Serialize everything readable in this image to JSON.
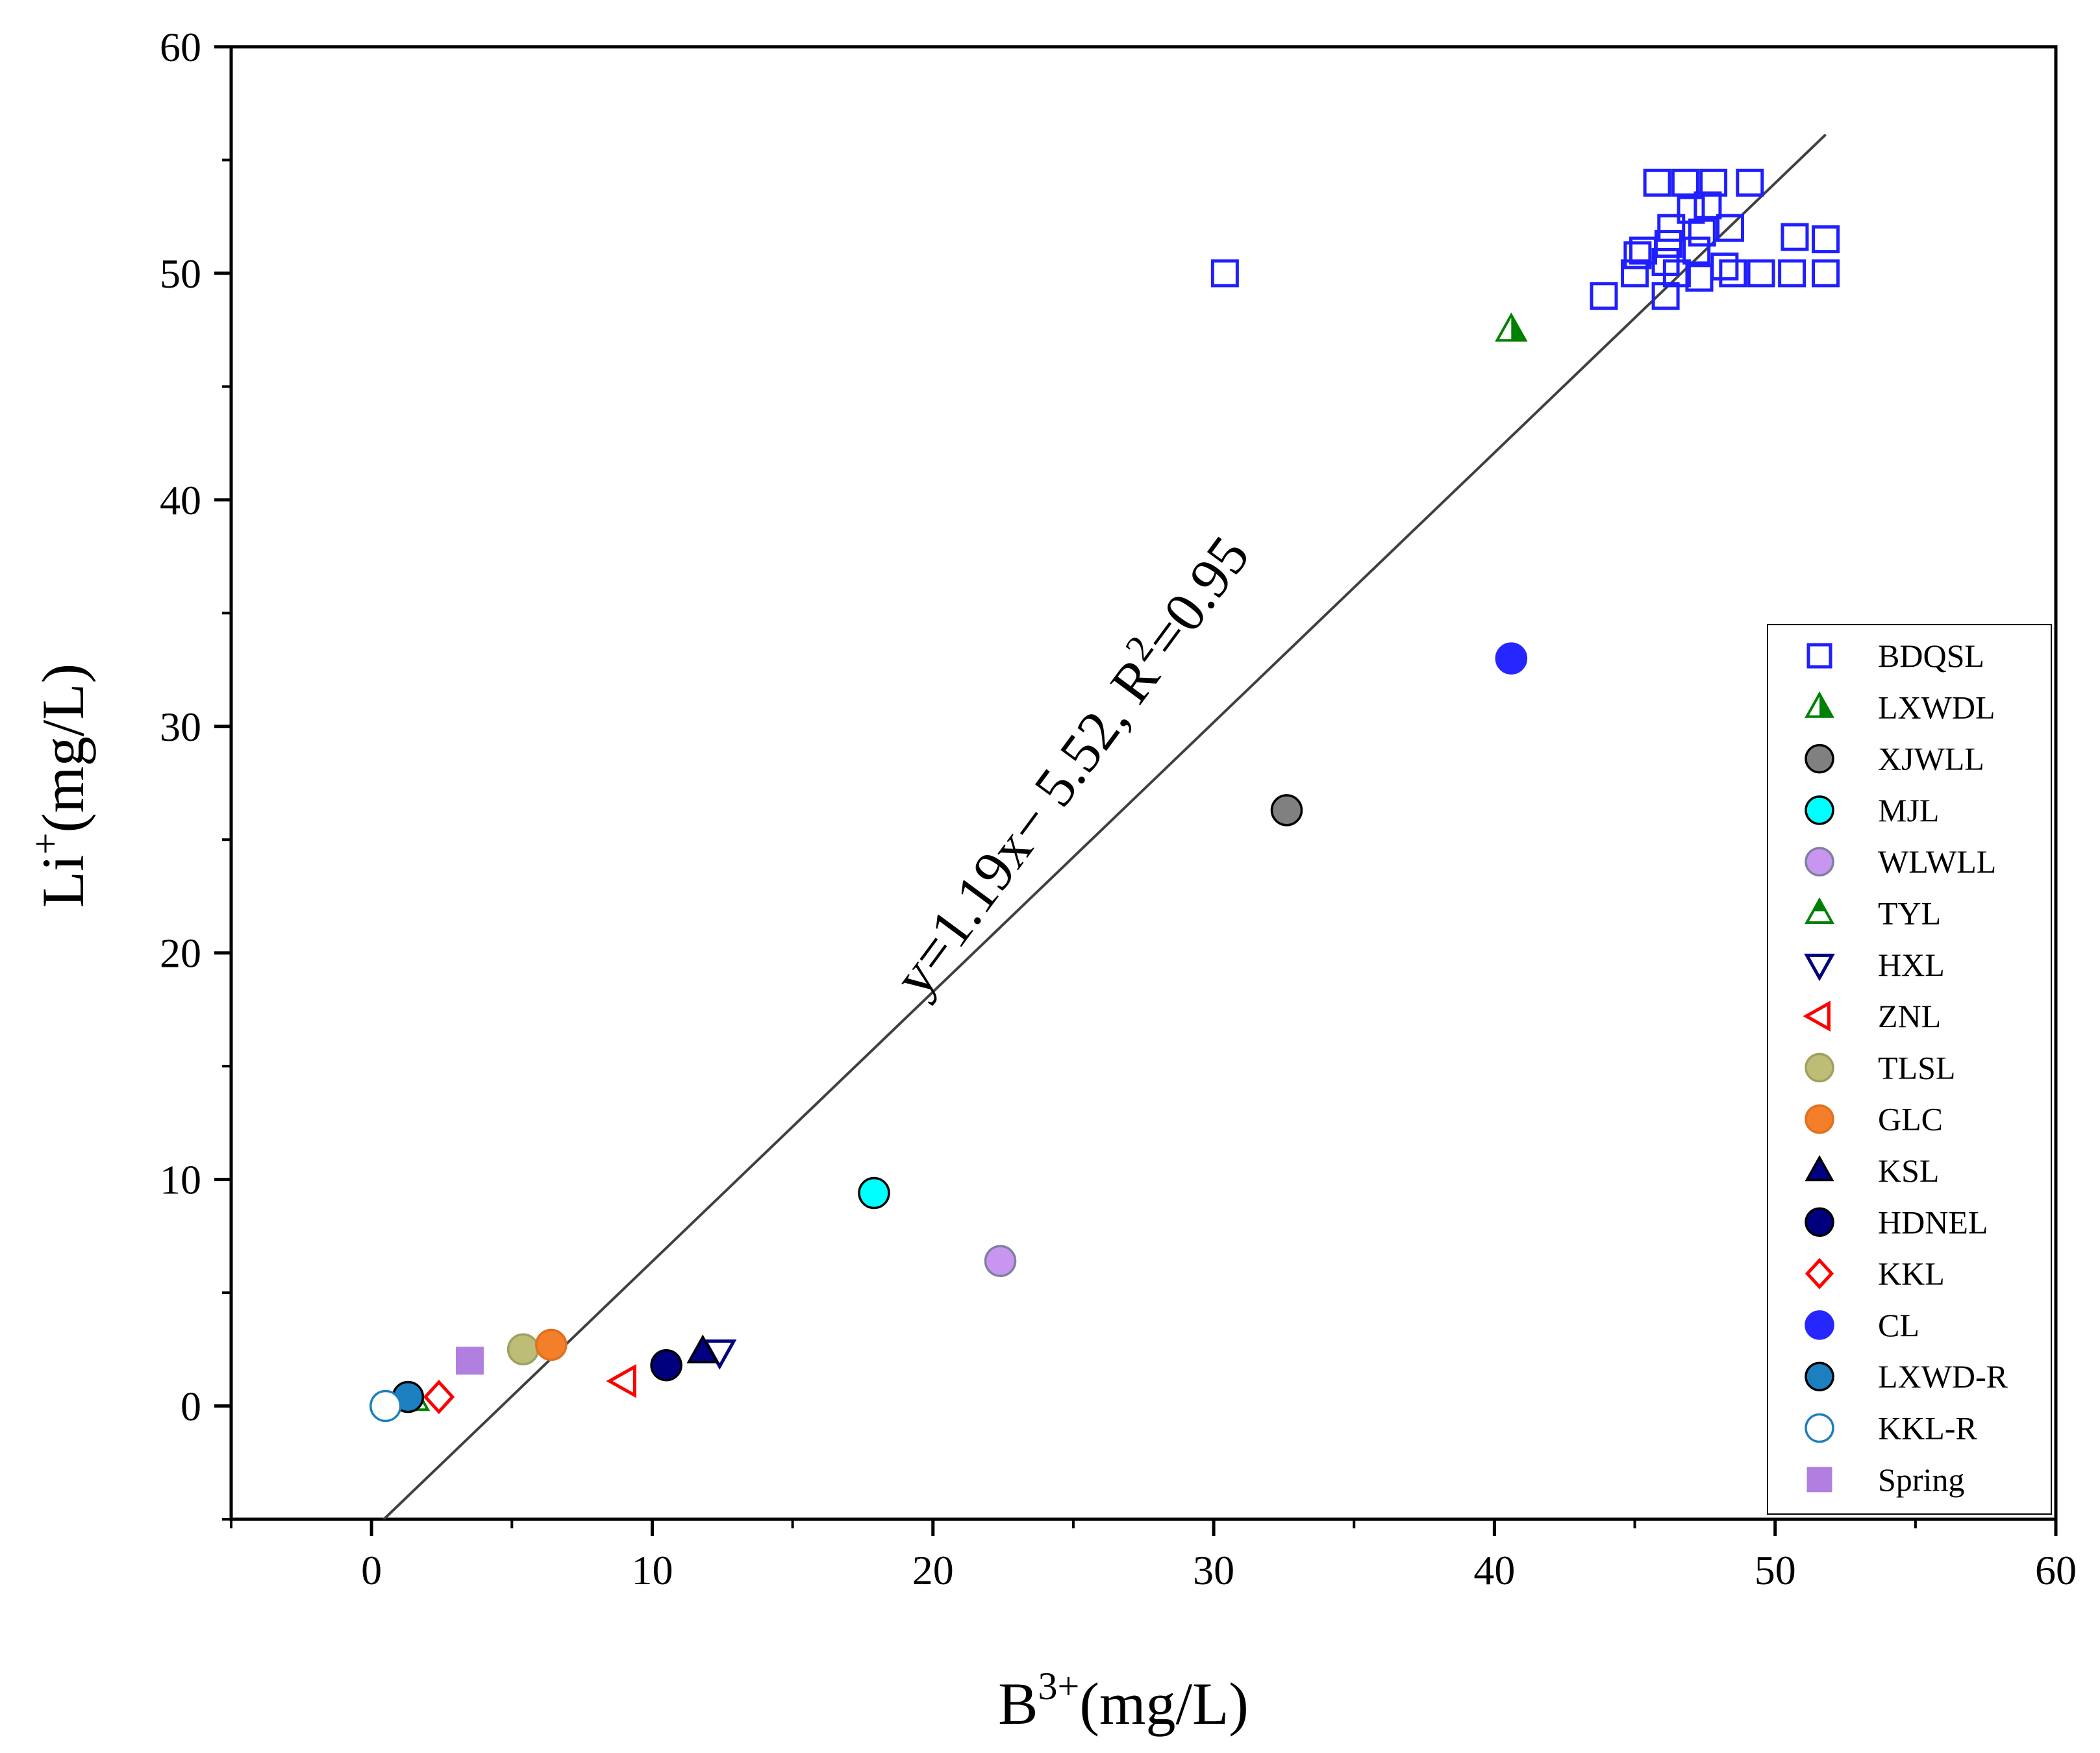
{
  "chart_data": {
    "type": "scatter",
    "title": "",
    "xlabel_base": "B",
    "xlabel_sup": "3+",
    "xlabel_unit": "(mg/L)",
    "ylabel_base": "Li",
    "ylabel_sup": "+",
    "ylabel_unit": "(mg/L)",
    "xlim": [
      -5,
      60
    ],
    "ylim": [
      -5,
      60
    ],
    "xticks": [
      0,
      10,
      20,
      30,
      40,
      50,
      60
    ],
    "yticks": [
      0,
      10,
      20,
      30,
      40,
      50,
      60
    ],
    "fit": {
      "slope": 1.19,
      "intercept": -5.52,
      "x_range": [
        0.4,
        51.8
      ],
      "label_pre": "y=1.19x− 5.52, R",
      "label_sup": "2",
      "label_post": "=0.95"
    },
    "legend_position": "lower-right",
    "series": [
      {
        "name": "BDQSL",
        "marker": "square",
        "fill": "none",
        "color": "#1f1fff",
        "points": [
          [
            30.4,
            50.0
          ],
          [
            43.9,
            49.0
          ],
          [
            45.0,
            50.0
          ],
          [
            45.1,
            50.8
          ],
          [
            45.3,
            51.0
          ],
          [
            45.8,
            54.0
          ],
          [
            46.1,
            49.0
          ],
          [
            46.1,
            50.5
          ],
          [
            46.2,
            51.3
          ],
          [
            46.3,
            52.0
          ],
          [
            46.5,
            50.0
          ],
          [
            46.8,
            54.0
          ],
          [
            47.0,
            52.8
          ],
          [
            47.2,
            51.0
          ],
          [
            47.3,
            49.8
          ],
          [
            47.4,
            51.8
          ],
          [
            47.6,
            53.0
          ],
          [
            47.8,
            54.0
          ],
          [
            48.2,
            50.3
          ],
          [
            48.4,
            52.0
          ],
          [
            48.5,
            50.0
          ],
          [
            49.1,
            54.0
          ],
          [
            49.5,
            50.0
          ],
          [
            50.6,
            50.0
          ],
          [
            50.7,
            51.6
          ],
          [
            51.8,
            50.0
          ],
          [
            51.8,
            51.5
          ]
        ]
      },
      {
        "name": "LXWDL",
        "marker": "triangle-half-left",
        "fill": "#008000",
        "color": "#008000",
        "points": [
          [
            40.6,
            47.5
          ]
        ]
      },
      {
        "name": "XJWLL",
        "marker": "circle",
        "fill": "#808080",
        "color": "#000000",
        "points": [
          [
            32.6,
            26.3
          ]
        ]
      },
      {
        "name": "MJL",
        "marker": "circle",
        "fill": "#00ffff",
        "color": "#000000",
        "points": [
          [
            17.9,
            9.4
          ]
        ]
      },
      {
        "name": "WLWLL",
        "marker": "circle",
        "fill": "#c896f0",
        "color": "#8080a0",
        "points": [
          [
            22.4,
            6.4
          ]
        ]
      },
      {
        "name": "TYL",
        "marker": "triangle-half-top",
        "fill": "#008000",
        "color": "#008000",
        "points": [
          [
            1.5,
            0.3
          ]
        ]
      },
      {
        "name": "HXL",
        "marker": "triangle-down",
        "fill": "none",
        "color": "#000080",
        "points": [
          [
            12.4,
            2.4
          ]
        ]
      },
      {
        "name": "ZNL",
        "marker": "triangle-left",
        "fill": "none",
        "color": "#ff0000",
        "points": [
          [
            9.0,
            1.1
          ]
        ]
      },
      {
        "name": "TLSL",
        "marker": "circle",
        "fill": "#bdbd78",
        "color": "#a0a060",
        "points": [
          [
            5.4,
            2.5
          ]
        ]
      },
      {
        "name": "GLC",
        "marker": "circle",
        "fill": "#f47f2a",
        "color": "#e07020",
        "points": [
          [
            6.4,
            2.7
          ]
        ]
      },
      {
        "name": "KSL",
        "marker": "triangle",
        "fill": "#000080",
        "color": "#000000",
        "points": [
          [
            11.8,
            2.4
          ]
        ]
      },
      {
        "name": "HDNEL",
        "marker": "circle",
        "fill": "#00007f",
        "color": "#000000",
        "points": [
          [
            10.5,
            1.8
          ]
        ]
      },
      {
        "name": "KKL",
        "marker": "diamond",
        "fill": "none",
        "color": "#ff0000",
        "points": [
          [
            2.4,
            0.4
          ]
        ]
      },
      {
        "name": "CL",
        "marker": "circle",
        "fill": "#2626ff",
        "color": "#2626ff",
        "points": [
          [
            40.6,
            33.0
          ]
        ]
      },
      {
        "name": "LXWD-R",
        "marker": "circle",
        "fill": "#1c7fc0",
        "color": "#000000",
        "points": [
          [
            1.3,
            0.4
          ]
        ]
      },
      {
        "name": "KKL-R",
        "marker": "circle",
        "fill": "#ffffff",
        "color": "#1c7fc0",
        "points": [
          [
            0.5,
            0.0
          ]
        ]
      },
      {
        "name": "Spring",
        "marker": "square",
        "fill": "#b07fe0",
        "color": "#b07fe0",
        "points": [
          [
            3.5,
            2.0
          ]
        ]
      }
    ]
  }
}
